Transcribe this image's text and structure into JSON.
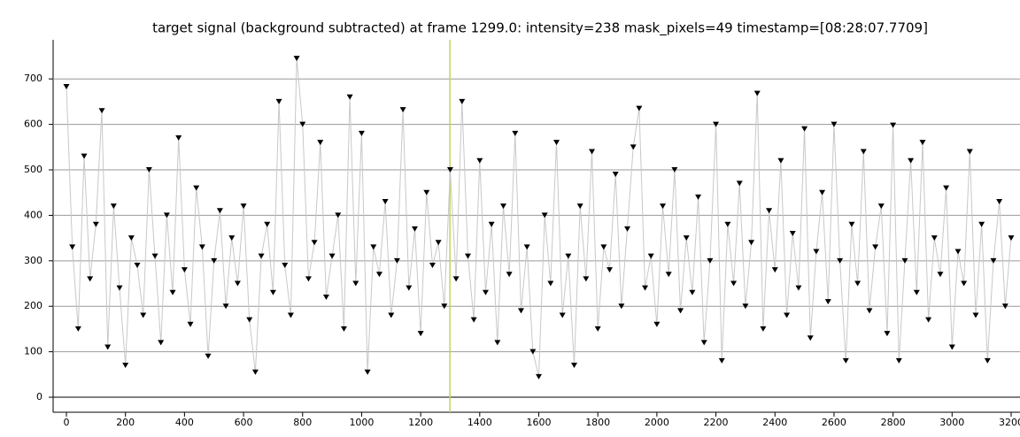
{
  "chart_data": {
    "type": "scatter",
    "title": "target signal (background subtracted) at frame 1299.0: intensity=238 mask_pixels=49 timestamp=[08:28:07.7709]",
    "x": [
      0,
      20,
      40,
      60,
      80,
      100,
      120,
      140,
      160,
      180,
      200,
      220,
      240,
      260,
      280,
      300,
      320,
      340,
      360,
      380,
      400,
      420,
      440,
      460,
      480,
      500,
      520,
      540,
      560,
      580,
      600,
      620,
      640,
      660,
      680,
      700,
      720,
      740,
      760,
      780,
      800,
      820,
      840,
      860,
      880,
      900,
      920,
      940,
      960,
      980,
      1000,
      1020,
      1040,
      1060,
      1080,
      1100,
      1120,
      1140,
      1160,
      1180,
      1200,
      1220,
      1240,
      1260,
      1280,
      1300,
      1320,
      1340,
      1360,
      1380,
      1400,
      1420,
      1440,
      1460,
      1480,
      1500,
      1520,
      1540,
      1560,
      1580,
      1600,
      1620,
      1640,
      1660,
      1680,
      1700,
      1720,
      1740,
      1760,
      1780,
      1800,
      1820,
      1840,
      1860,
      1880,
      1900,
      1920,
      1940,
      1960,
      1980,
      2000,
      2020,
      2040,
      2060,
      2080,
      2100,
      2120,
      2140,
      2160,
      2180,
      2200,
      2220,
      2240,
      2260,
      2280,
      2300,
      2320,
      2340,
      2360,
      2380,
      2400,
      2420,
      2440,
      2460,
      2480,
      2500,
      2520,
      2540,
      2560,
      2580,
      2600,
      2620,
      2640,
      2660,
      2680,
      2700,
      2720,
      2740,
      2760,
      2780,
      2800,
      2820,
      2840,
      2860,
      2880,
      2900,
      2920,
      2940,
      2960,
      2980,
      3000,
      3020,
      3040,
      3060,
      3080,
      3100,
      3120,
      3140,
      3160,
      3180,
      3200
    ],
    "values": [
      683,
      330,
      150,
      530,
      260,
      380,
      630,
      110,
      420,
      240,
      70,
      350,
      290,
      180,
      500,
      310,
      120,
      400,
      230,
      570,
      280,
      160,
      460,
      330,
      90,
      300,
      410,
      200,
      350,
      250,
      420,
      170,
      55,
      310,
      380,
      230,
      650,
      290,
      180,
      745,
      600,
      260,
      340,
      560,
      220,
      310,
      400,
      150,
      660,
      250,
      580,
      55,
      330,
      270,
      430,
      180,
      300,
      632,
      240,
      370,
      140,
      450,
      290,
      340,
      200,
      500,
      260,
      650,
      310,
      170,
      520,
      230,
      380,
      120,
      420,
      270,
      580,
      190,
      330,
      100,
      45,
      400,
      250,
      560,
      180,
      310,
      70,
      420,
      260,
      540,
      150,
      330,
      280,
      490,
      200,
      370,
      550,
      635,
      240,
      310,
      160,
      420,
      270,
      500,
      190,
      350,
      230,
      440,
      120,
      300,
      600,
      80,
      380,
      250,
      470,
      200,
      340,
      668,
      150,
      410,
      280,
      520,
      180,
      360,
      240,
      590,
      130,
      320,
      450,
      210,
      600,
      300,
      80,
      380,
      250,
      540,
      190,
      330,
      420,
      140,
      598,
      80,
      300,
      520,
      230,
      560,
      170,
      350,
      270,
      460,
      110,
      320,
      250,
      540,
      180,
      380,
      80,
      300,
      430,
      200,
      350
    ],
    "marker_color": "#000000",
    "line_color": "#c8c8c8",
    "cursor_x": 1299,
    "cursor_color": "#c8d060",
    "xlim": [
      -45,
      3230
    ],
    "ylim": [
      -33,
      786
    ],
    "xticks": [
      0,
      200,
      400,
      600,
      800,
      1000,
      1200,
      1400,
      1600,
      1800,
      2000,
      2200,
      2400,
      2600,
      2800,
      3000,
      3200
    ],
    "yticks": [
      0,
      100,
      200,
      300,
      400,
      500,
      600,
      700
    ],
    "grid": true
  }
}
